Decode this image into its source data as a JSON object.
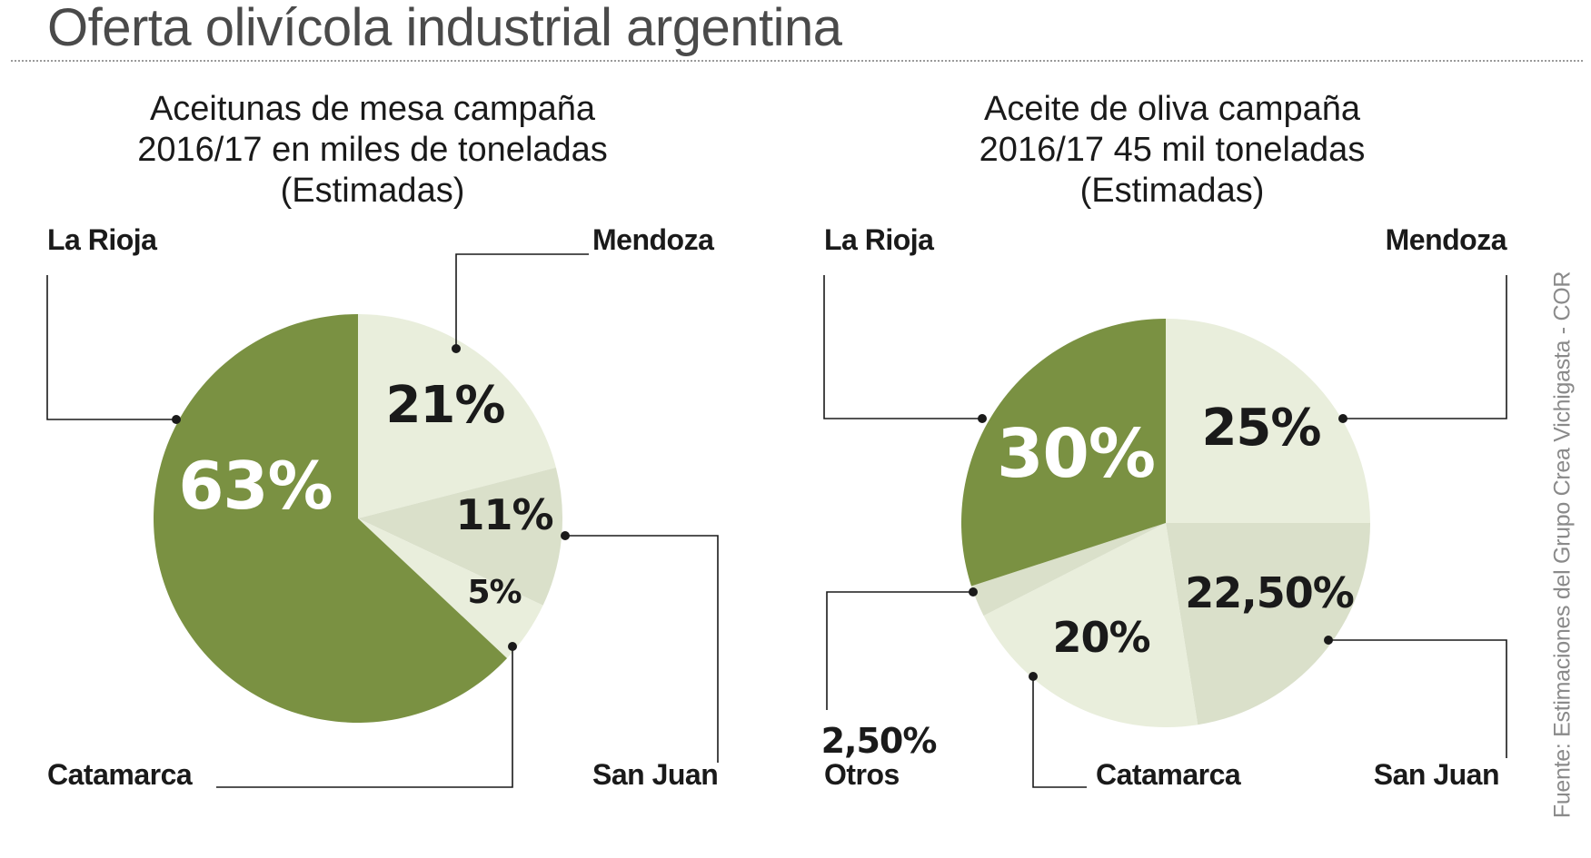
{
  "title": "Oferta olivícola industrial argentina",
  "source": "Fuente: Estimaciones del Grupo Crea Vichigasta - COR",
  "colors": {
    "dark_green": "#7a9142",
    "light_green": "#e9eedc",
    "medium_green": "#dae0ca",
    "line": "#1a1a1a"
  },
  "chart_data": [
    {
      "type": "pie",
      "title_lines": [
        "Aceitunas de mesa campaña",
        "2016/17 en miles de toneladas",
        "(Estimadas)"
      ],
      "slices": [
        {
          "name": "Mendoza",
          "value": 21,
          "display": "21%"
        },
        {
          "name": "San Juan",
          "value": 11,
          "display": "11%"
        },
        {
          "name": "Catamarca",
          "value": 5,
          "display": "5%"
        },
        {
          "name": "La Rioja",
          "value": 63,
          "display": "63%"
        }
      ]
    },
    {
      "type": "pie",
      "title_lines": [
        "Aceite de oliva campaña",
        "2016/17 45 mil toneladas",
        "(Estimadas)"
      ],
      "slices": [
        {
          "name": "Mendoza",
          "value": 25,
          "display": "25%"
        },
        {
          "name": "San Juan",
          "value": 22.5,
          "display": "22,50%"
        },
        {
          "name": "Catamarca",
          "value": 20,
          "display": "20%"
        },
        {
          "name": "Otros",
          "value": 2.5,
          "display": "2,50%"
        },
        {
          "name": "La Rioja",
          "value": 30,
          "display": "30%"
        }
      ]
    }
  ]
}
